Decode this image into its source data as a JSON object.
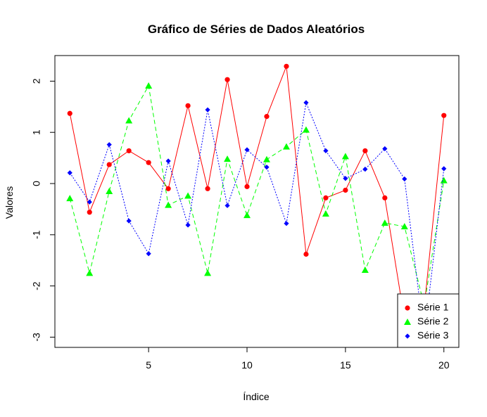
{
  "chart_data": {
    "type": "line",
    "title": "Gráfico de Séries de Dados Aleatórios",
    "xlabel": "Índice",
    "ylabel": "Valores",
    "x": [
      1,
      2,
      3,
      4,
      5,
      6,
      7,
      8,
      9,
      10,
      11,
      12,
      13,
      14,
      15,
      16,
      17,
      18,
      19,
      20
    ],
    "xlim": [
      0.24,
      20.76
    ],
    "ylim": [
      -3.2,
      2.5
    ],
    "x_ticks": [
      5,
      10,
      15,
      20
    ],
    "y_ticks": [
      -3,
      -2,
      -1,
      0,
      1,
      2
    ],
    "grid": false,
    "legend_position": "bottom-right",
    "series": [
      {
        "name": "Série 1",
        "color": "#ff0000",
        "line_style": "solid",
        "marker": "circle",
        "values": [
          1.37,
          -0.56,
          0.37,
          0.64,
          0.41,
          -0.1,
          1.52,
          -0.1,
          2.03,
          -0.06,
          1.31,
          2.29,
          -1.38,
          -0.28,
          -0.13,
          0.64,
          -0.28,
          -2.65,
          -2.42,
          1.33
        ]
      },
      {
        "name": "Série 2",
        "color": "#00ff00",
        "line_style": "dashed",
        "marker": "triangle",
        "values": [
          -0.29,
          -1.75,
          -0.15,
          1.23,
          1.91,
          -0.42,
          -0.24,
          -1.75,
          0.48,
          -0.62,
          0.47,
          0.72,
          1.05,
          -0.59,
          0.53,
          -1.69,
          -0.77,
          -0.84,
          -2.38,
          0.06
        ]
      },
      {
        "name": "Série 3",
        "color": "#0000ff",
        "line_style": "dotted",
        "marker": "diamond",
        "values": [
          0.21,
          -0.36,
          0.76,
          -0.73,
          -1.37,
          0.44,
          -0.81,
          1.44,
          -0.43,
          0.66,
          0.32,
          -0.78,
          1.58,
          0.64,
          0.1,
          0.28,
          0.68,
          0.09,
          -3.0,
          0.29
        ]
      }
    ]
  }
}
